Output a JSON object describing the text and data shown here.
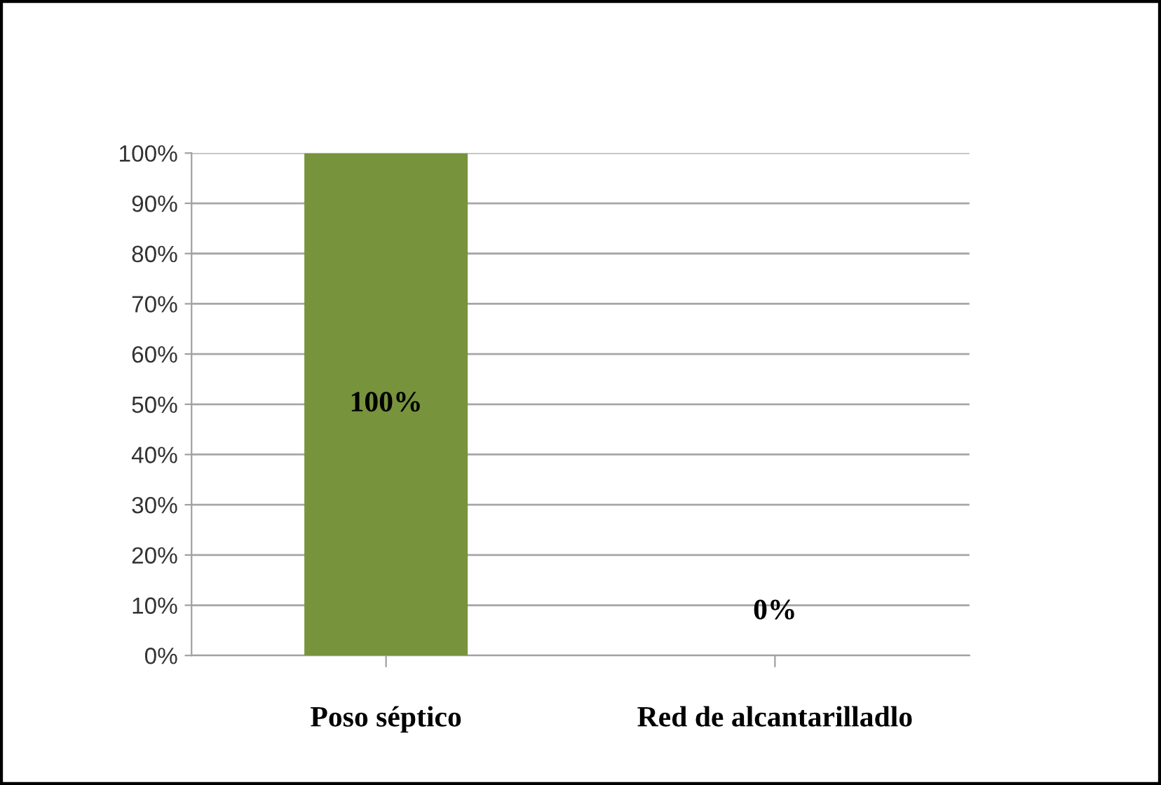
{
  "chart_data": {
    "type": "bar",
    "categories": [
      "Poso séptico",
      "Red de alcantarilladlo"
    ],
    "values": [
      100,
      0
    ],
    "color": "#77933c",
    "value_labels": [
      "100%",
      "0%"
    ],
    "ylim": [
      0,
      100
    ],
    "yticks": [
      {
        "value": 0,
        "label": "0%"
      },
      {
        "value": 10,
        "label": "10%"
      },
      {
        "value": 20,
        "label": "20%"
      },
      {
        "value": 30,
        "label": "30%"
      },
      {
        "value": 40,
        "label": "40%"
      },
      {
        "value": 50,
        "label": "50%"
      },
      {
        "value": 60,
        "label": "60%"
      },
      {
        "value": 70,
        "label": "70%"
      },
      {
        "value": 80,
        "label": "80%"
      },
      {
        "value": 90,
        "label": "90%"
      },
      {
        "value": 100,
        "label": "100%"
      }
    ],
    "grid": "y"
  }
}
